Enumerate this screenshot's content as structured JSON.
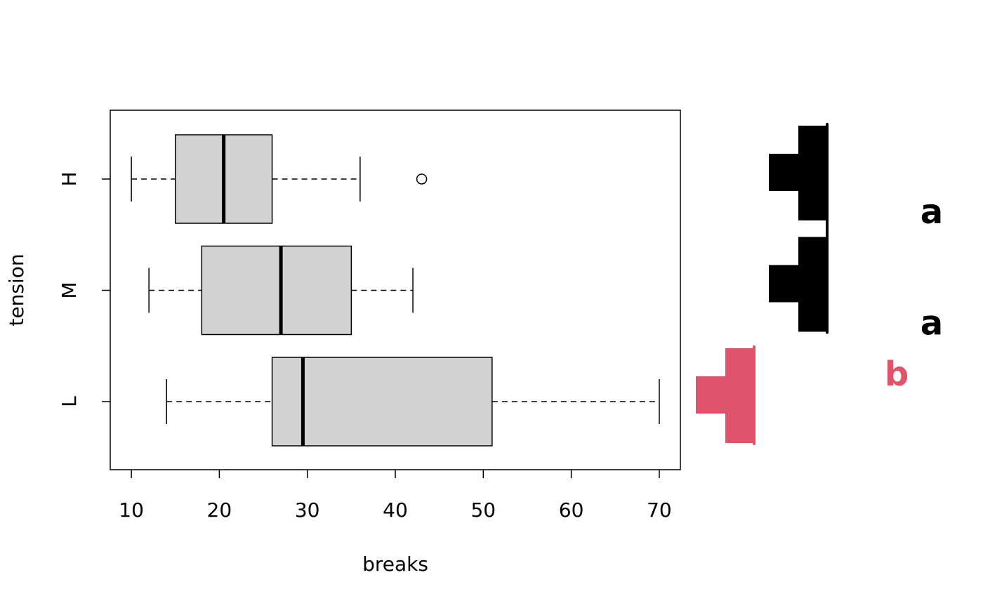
{
  "chart_data": {
    "type": "boxplot",
    "xlabel": "breaks",
    "ylabel": "tension",
    "categories": [
      "L",
      "M",
      "H"
    ],
    "boxes": [
      {
        "whislo": 14,
        "q1": 26,
        "median": 29.5,
        "q3": 51,
        "whishi": 70,
        "outliers": []
      },
      {
        "whislo": 12,
        "q1": 18,
        "median": 27,
        "q3": 35,
        "whishi": 42,
        "outliers": []
      },
      {
        "whislo": 10,
        "q1": 15,
        "median": 20.5,
        "q3": 26,
        "whishi": 36,
        "outliers": [
          43
        ]
      }
    ],
    "box_color": "#d3d3d3",
    "letters": [
      {
        "label": "b",
        "color": "#df536b"
      },
      {
        "label": "a",
        "color": "#000000"
      },
      {
        "label": "a",
        "color": "#000000"
      }
    ],
    "xlim": [
      7.6,
      72.4
    ],
    "xticks": [
      10,
      20,
      30,
      40,
      50,
      60,
      70
    ]
  }
}
